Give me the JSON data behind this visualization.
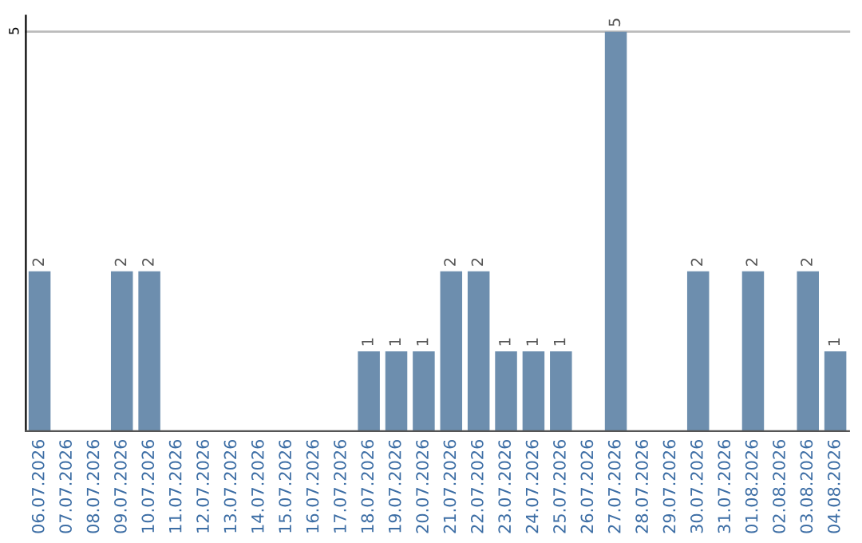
{
  "chart_data": {
    "type": "bar",
    "categories": [
      "06.07.2026",
      "07.07.2026",
      "08.07.2026",
      "09.07.2026",
      "10.07.2026",
      "11.07.2026",
      "12.07.2026",
      "13.07.2026",
      "14.07.2026",
      "15.07.2026",
      "16.07.2026",
      "17.07.2026",
      "18.07.2026",
      "19.07.2026",
      "20.07.2026",
      "21.07.2026",
      "22.07.2026",
      "23.07.2026",
      "24.07.2026",
      "25.07.2026",
      "26.07.2026",
      "27.07.2026",
      "28.07.2026",
      "29.07.2026",
      "30.07.2026",
      "31.07.2026",
      "01.08.2026",
      "02.08.2026",
      "03.08.2026",
      "04.08.2026"
    ],
    "values": [
      2,
      0,
      0,
      2,
      2,
      0,
      0,
      0,
      0,
      0,
      0,
      0,
      1,
      1,
      1,
      2,
      2,
      1,
      1,
      1,
      0,
      5,
      0,
      0,
      2,
      0,
      2,
      0,
      2,
      1
    ],
    "value_labels": [
      "2",
      null,
      null,
      "2",
      "2",
      null,
      null,
      null,
      null,
      null,
      null,
      null,
      "1",
      "1",
      "1",
      "2",
      "2",
      "1",
      "1",
      "1",
      null,
      "5",
      null,
      null,
      "2",
      null,
      "2",
      null,
      "2",
      "1"
    ],
    "color": "#6d8eae",
    "ylim": [
      0,
      5.2
    ],
    "yticks": [
      5
    ],
    "grid": "y",
    "legend": false
  }
}
